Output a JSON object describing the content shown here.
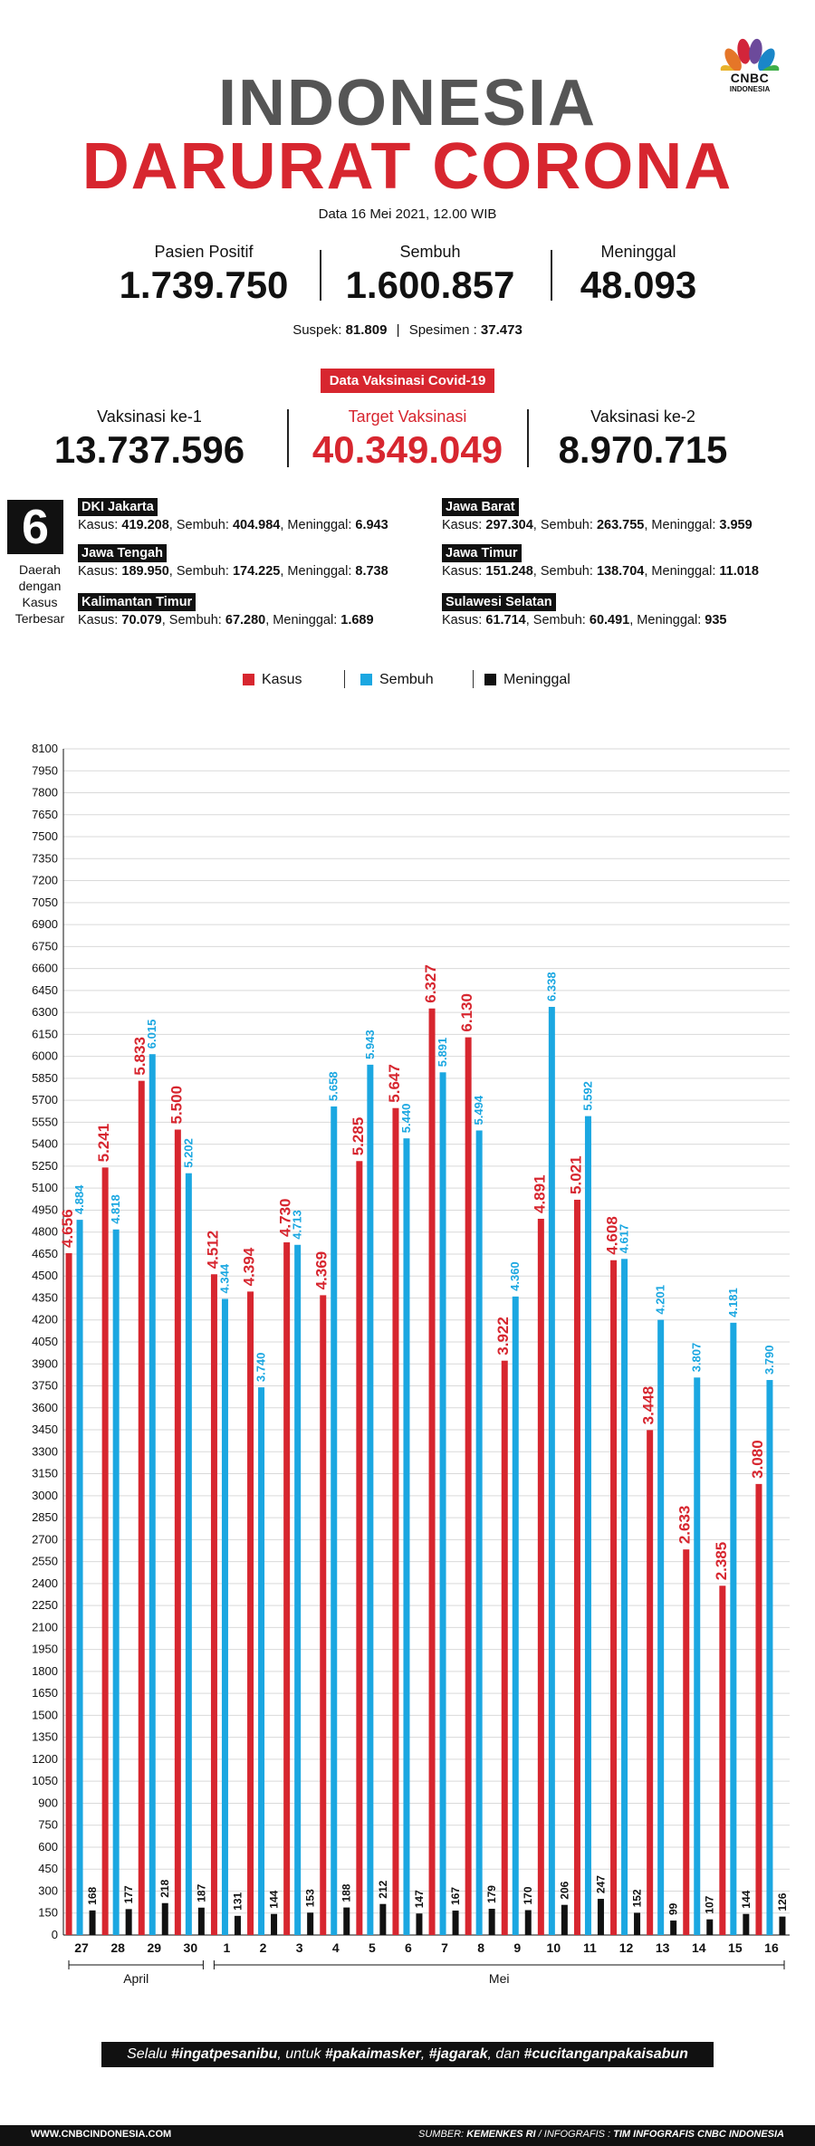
{
  "logo": {
    "text": "CNBC",
    "sub": "INDONESIA"
  },
  "title": {
    "line1": "INDONESIA",
    "line2": "DARURAT CORONA"
  },
  "date": "Data 16 Mei 2021, 12.00 WIB",
  "stats": [
    {
      "label": "Pasien Positif",
      "value": "1.739.750"
    },
    {
      "label": "Sembuh",
      "value": "1.600.857"
    },
    {
      "label": "Meninggal",
      "value": "48.093"
    }
  ],
  "suspek": {
    "label": "Suspek:",
    "value": "81.809",
    "sep": "|",
    "spesimen_label": "Spesimen :",
    "spesimen_value": "37.473"
  },
  "vaksin": {
    "header": "Data Vaksinasi Covid-19",
    "items": [
      {
        "label": "Vaksinasi ke-1",
        "value": "13.737.596"
      },
      {
        "label": "Target Vaksinasi",
        "value": "40.349.049"
      },
      {
        "label": "Vaksinasi ke-2",
        "value": "8.970.715"
      }
    ]
  },
  "daerah": {
    "number": "6",
    "label": [
      "Daerah",
      "dengan",
      "Kasus",
      "Terbesar"
    ],
    "regions": [
      {
        "name": "DKI Jakarta",
        "kasus": "419.208",
        "sembuh": "404.984",
        "meninggal": "6.943"
      },
      {
        "name": "Jawa Barat",
        "kasus": "297.304",
        "sembuh": "263.755",
        "meninggal": "3.959"
      },
      {
        "name": "Jawa Tengah",
        "kasus": "189.950",
        "sembuh": "174.225",
        "meninggal": "8.738"
      },
      {
        "name": "Jawa Timur",
        "kasus": "151.248",
        "sembuh": "138.704",
        "meninggal": "11.018"
      },
      {
        "name": "Kalimantan Timur",
        "kasus": "70.079",
        "sembuh": "67.280",
        "meninggal": "1.689"
      },
      {
        "name": "Sulawesi Selatan",
        "kasus": "61.714",
        "sembuh": "60.491",
        "meninggal": "935"
      }
    ],
    "kasus_label": "Kasus:",
    "sembuh_label": "Sembuh:",
    "meninggal_label": "Meninggal:"
  },
  "colors": {
    "kasus": "#d7262f",
    "sembuh": "#1ba7e1",
    "meninggal": "#111111"
  },
  "chart_data": {
    "type": "bar",
    "categories": [
      "27",
      "28",
      "29",
      "30",
      "1",
      "2",
      "3",
      "4",
      "5",
      "6",
      "7",
      "8",
      "9",
      "10",
      "11",
      "12",
      "13",
      "14",
      "15",
      "16"
    ],
    "month_groups": [
      {
        "label": "April",
        "count": 4
      },
      {
        "label": "Mei",
        "count": 16
      }
    ],
    "series": [
      {
        "name": "Kasus",
        "values": [
          4656,
          5241,
          5833,
          5500,
          4512,
          4394,
          4730,
          4369,
          5285,
          5647,
          6327,
          6130,
          3922,
          4891,
          5021,
          4608,
          3448,
          2633,
          2385,
          3080
        ],
        "labels": [
          "4.656",
          "5.241",
          "5.833",
          "5.500",
          "4.512",
          "4.394",
          "4.730",
          "4.369",
          "5.285",
          "5.647",
          "6.327",
          "6.130",
          "3.922",
          "4.891",
          "5.021",
          "4.608",
          "3.448",
          "2.633",
          "2.385",
          "3.080"
        ]
      },
      {
        "name": "Sembuh",
        "values": [
          4884,
          4818,
          6015,
          5202,
          4344,
          3740,
          4713,
          5658,
          5943,
          5440,
          5891,
          5494,
          4360,
          6338,
          5592,
          4617,
          4201,
          3807,
          4181,
          3790
        ],
        "labels": [
          "4.884",
          "4.818",
          "6.015",
          "5.202",
          "4.344",
          "3.740",
          "4.713",
          "5.658",
          "5.943",
          "5.440",
          "5.891",
          "5.494",
          "4.360",
          "6.338",
          "5.592",
          "4.617",
          "4.201",
          "3.807",
          "4.181",
          "3.790"
        ]
      },
      {
        "name": "Meninggal",
        "values": [
          168,
          177,
          218,
          187,
          131,
          144,
          153,
          188,
          212,
          147,
          167,
          179,
          170,
          206,
          247,
          152,
          99,
          107,
          144,
          126
        ],
        "labels": [
          "168",
          "177",
          "218",
          "187",
          "131",
          "144",
          "153",
          "188",
          "212",
          "147",
          "167",
          "179",
          "170",
          "206",
          "247",
          "152",
          "99",
          "107",
          "144",
          "126"
        ]
      }
    ],
    "ylim": [
      0,
      8100
    ],
    "ytick_step": 150,
    "grid": true,
    "legend_position": "top"
  },
  "slogan": {
    "p1": "Selalu ",
    "h1": "#ingatpesanibu",
    "p2": ", untuk ",
    "h2": "#pakaimasker",
    "p3": ", ",
    "h3": "#jagarak",
    "p4": ", dan ",
    "h4": "#cucitanganpakaisabun"
  },
  "footer": {
    "left": "WWW.CNBCINDONESIA.COM",
    "right_prefix": "SUMBER: ",
    "right_source": "KEMENKES RI",
    "right_mid": " / INFOGRAFIS : ",
    "right_credit": "TIM INFOGRAFIS CNBC INDONESIA"
  }
}
